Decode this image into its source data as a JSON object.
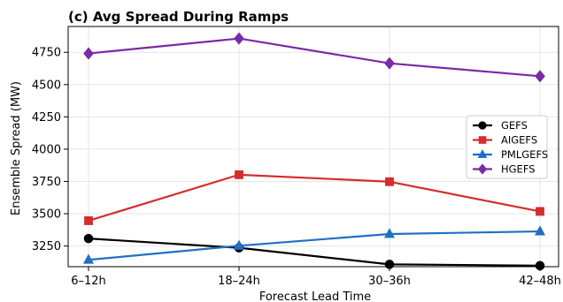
{
  "chart_data": {
    "type": "line",
    "title": "(c)  Avg Spread During Ramps",
    "xlabel": "Forecast Lead Time",
    "ylabel": "Ensemble Spread (MW)",
    "categories": [
      "6–12h",
      "18–24h",
      "30–36h",
      "42–48h"
    ],
    "yticks": [
      3250,
      3500,
      3750,
      4000,
      4250,
      4500,
      4750
    ],
    "ylim": [
      3090,
      4950
    ],
    "grid": true,
    "legend_position": "center-right",
    "series": [
      {
        "name": "GEFS",
        "color": "#000000",
        "marker": "circle",
        "values": [
          3308,
          3236,
          3108,
          3098
        ]
      },
      {
        "name": "AIGEFS",
        "color": "#d62d2d",
        "marker": "square",
        "values": [
          3446,
          3802,
          3748,
          3518
        ]
      },
      {
        "name": "PMLGEFS",
        "color": "#1f6fc5",
        "marker": "triangle",
        "values": [
          3143,
          3252,
          3343,
          3363
        ]
      },
      {
        "name": "HGEFS",
        "color": "#7b2aa8",
        "marker": "diamond",
        "values": [
          4741,
          4857,
          4665,
          4565
        ]
      }
    ]
  }
}
